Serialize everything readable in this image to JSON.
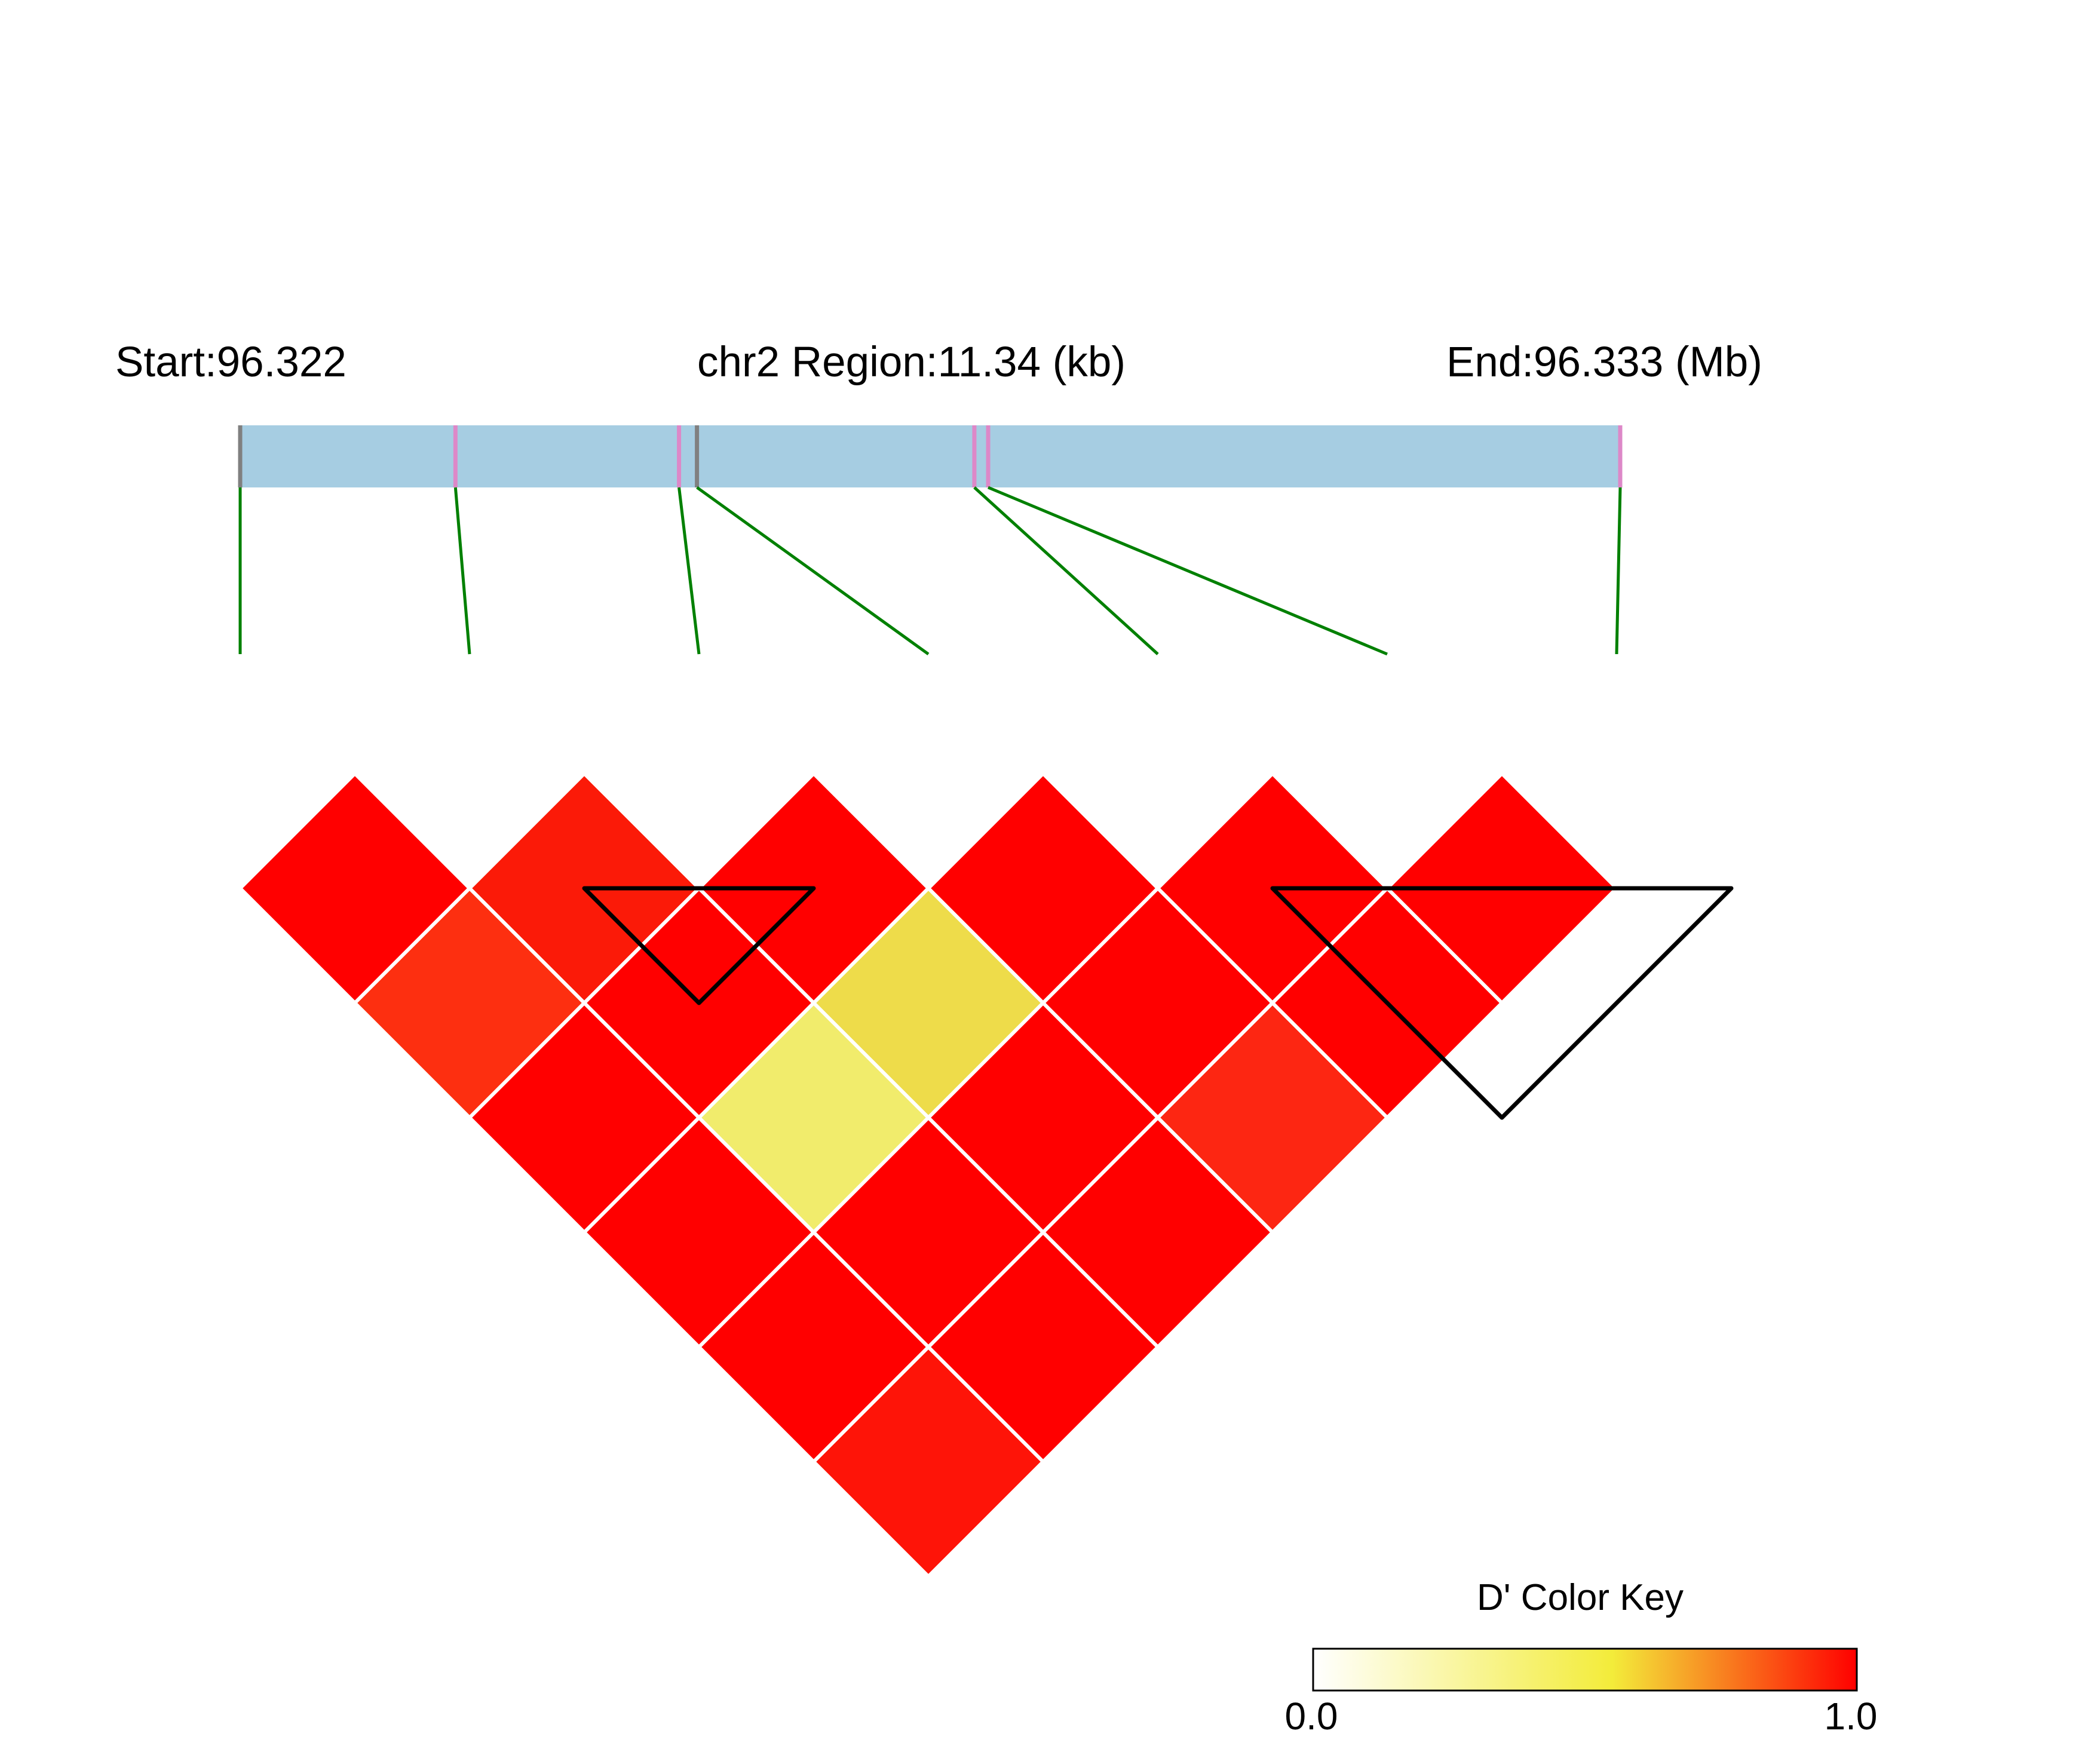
{
  "chart_data": {
    "type": "heatmap",
    "header": {
      "start_label": "Start:96.322",
      "region_label": "chr2 Region:11.34 (kb)",
      "end_label": "End:96.333 (Mb)"
    },
    "region_mb": [
      96.322,
      96.333
    ],
    "snp_positions_fraction": [
      0.0,
      0.156,
      0.318,
      0.331,
      0.532,
      0.542,
      1.0
    ],
    "colors": {
      "region_bar": "#a6cde2",
      "snp_tick": "#dd88c8",
      "snp_tick_gray": "#808080",
      "connector": "#008000",
      "block_outline": "#000000",
      "cell_border": "#ffffff"
    },
    "ld_matrix": [
      {
        "i": 1,
        "j": 2,
        "value": 1.0,
        "color": "#ff0000"
      },
      {
        "i": 2,
        "j": 3,
        "value": 0.97,
        "color": "#fb1a08"
      },
      {
        "i": 3,
        "j": 4,
        "value": 1.0,
        "color": "#ff0000"
      },
      {
        "i": 4,
        "j": 5,
        "value": 1.0,
        "color": "#ff0000"
      },
      {
        "i": 5,
        "j": 6,
        "value": 1.0,
        "color": "#ff0000"
      },
      {
        "i": 6,
        "j": 7,
        "value": 1.0,
        "color": "#ff0000"
      },
      {
        "i": 1,
        "j": 3,
        "value": 0.85,
        "color": "#fd2f10"
      },
      {
        "i": 2,
        "j": 4,
        "value": 1.0,
        "color": "#ff0000"
      },
      {
        "i": 3,
        "j": 5,
        "value": 0.4,
        "color": "#eedc4a"
      },
      {
        "i": 4,
        "j": 6,
        "value": 1.0,
        "color": "#ff0000"
      },
      {
        "i": 5,
        "j": 7,
        "value": 1.0,
        "color": "#ff0000"
      },
      {
        "i": 1,
        "j": 4,
        "value": 1.0,
        "color": "#ff0000"
      },
      {
        "i": 2,
        "j": 5,
        "value": 0.3,
        "color": "#f1ec6c"
      },
      {
        "i": 3,
        "j": 6,
        "value": 1.0,
        "color": "#ff0000"
      },
      {
        "i": 4,
        "j": 7,
        "value": 0.9,
        "color": "#fd2612"
      },
      {
        "i": 1,
        "j": 5,
        "value": 1.0,
        "color": "#ff0000"
      },
      {
        "i": 2,
        "j": 6,
        "value": 1.0,
        "color": "#ff0000"
      },
      {
        "i": 3,
        "j": 7,
        "value": 1.0,
        "color": "#ff0000"
      },
      {
        "i": 1,
        "j": 6,
        "value": 1.0,
        "color": "#ff0000"
      },
      {
        "i": 2,
        "j": 7,
        "value": 1.0,
        "color": "#ff0000"
      },
      {
        "i": 1,
        "j": 7,
        "value": 0.97,
        "color": "#fe1408"
      }
    ],
    "ld_blocks": [
      [
        2,
        3
      ],
      [
        5,
        7
      ]
    ],
    "color_key": {
      "title": "D' Color Key",
      "min_label": "0.0",
      "max_label": "1.0",
      "stops": [
        "#ffffff",
        "#f3ec3a",
        "#ff0000"
      ]
    }
  }
}
